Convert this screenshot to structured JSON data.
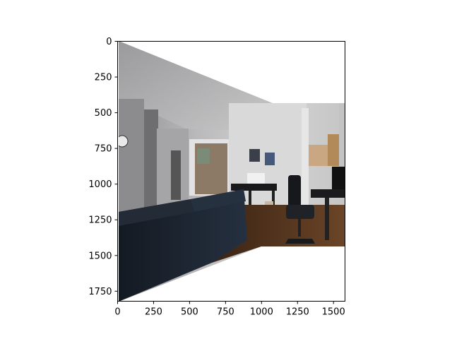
{
  "figure": {
    "x_axis": {
      "range": [
        0,
        1580
      ],
      "ticks": [
        0,
        250,
        500,
        750,
        1000,
        1250,
        1500
      ],
      "tick_labels": [
        "0",
        "250",
        "500",
        "750",
        "1000",
        "1250",
        "1500"
      ]
    },
    "y_axis": {
      "range": [
        0,
        1820
      ],
      "inverted": true,
      "ticks": [
        0,
        250,
        500,
        750,
        1000,
        1250,
        1500,
        1750
      ],
      "tick_labels": [
        "0",
        "250",
        "500",
        "750",
        "1000",
        "1250",
        "1500",
        "1750"
      ]
    },
    "image": {
      "content": "warped stitched photo of an apartment living room with couch, piano, desk and office chair",
      "warped_outline_corners": [
        [
          0,
          0
        ],
        [
          1080,
          430
        ],
        [
          1580,
          430
        ],
        [
          1580,
          1420
        ],
        [
          1000,
          1420
        ],
        [
          0,
          1800
        ]
      ]
    },
    "colors": {
      "background": "#ffffff",
      "wall": "#c8c8c8",
      "floor": "#5a3a22",
      "couch": "#1c2530"
    }
  }
}
